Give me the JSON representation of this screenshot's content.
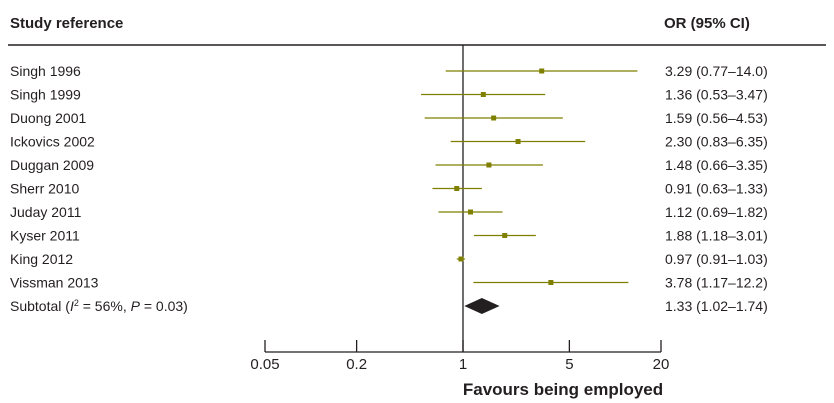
{
  "header": {
    "study_col": "Study reference",
    "or_col": "OR (95% CI)"
  },
  "colors": {
    "ci_line": "#7f7f00",
    "marker": "#7f7f00",
    "diamond": "#231f20",
    "axis": "#231f20",
    "divider": "#231f20"
  },
  "chart_data": {
    "type": "forest",
    "xscale": "log",
    "xlim": [
      0.05,
      20
    ],
    "xticks": [
      0.05,
      0.2,
      1,
      5,
      20
    ],
    "xtick_labels": [
      "0.05",
      "0.2",
      "1",
      "5",
      "20"
    ],
    "reference_line": 1,
    "xlabel": "Favours being employed",
    "studies": [
      {
        "label": "Singh 1996",
        "or": 3.29,
        "lo": 0.77,
        "hi": 14.0,
        "text": "3.29 (0.77–14.0)"
      },
      {
        "label": "Singh 1999",
        "or": 1.36,
        "lo": 0.53,
        "hi": 3.47,
        "text": "1.36 (0.53–3.47)"
      },
      {
        "label": "Duong 2001",
        "or": 1.59,
        "lo": 0.56,
        "hi": 4.53,
        "text": "1.59 (0.56–4.53)"
      },
      {
        "label": "Ickovics 2002",
        "or": 2.3,
        "lo": 0.83,
        "hi": 6.35,
        "text": "2.30 (0.83–6.35)"
      },
      {
        "label": "Duggan 2009",
        "or": 1.48,
        "lo": 0.66,
        "hi": 3.35,
        "text": "1.48 (0.66–3.35)"
      },
      {
        "label": "Sherr 2010",
        "or": 0.91,
        "lo": 0.63,
        "hi": 1.33,
        "text": "0.91 (0.63–1.33)"
      },
      {
        "label": "Juday 2011",
        "or": 1.12,
        "lo": 0.69,
        "hi": 1.82,
        "text": "1.12 (0.69–1.82)"
      },
      {
        "label": "Kyser 2011",
        "or": 1.88,
        "lo": 1.18,
        "hi": 3.01,
        "text": "1.88 (1.18–3.01)"
      },
      {
        "label": "King 2012",
        "or": 0.97,
        "lo": 0.91,
        "hi": 1.03,
        "text": "0.97 (0.91–1.03)"
      },
      {
        "label": "Vissman 2013",
        "or": 3.78,
        "lo": 1.17,
        "hi": 12.2,
        "text": "3.78 (1.17–12.2)"
      }
    ],
    "subtotal": {
      "label_prefix": "Subtotal (",
      "label_i": "I",
      "label_sup": "2",
      "label_mid": " = 56%, ",
      "label_p": "P",
      "label_end": " = 0.03)",
      "or": 1.33,
      "lo": 1.02,
      "hi": 1.74,
      "text": "1.33 (1.02–1.74)"
    }
  }
}
